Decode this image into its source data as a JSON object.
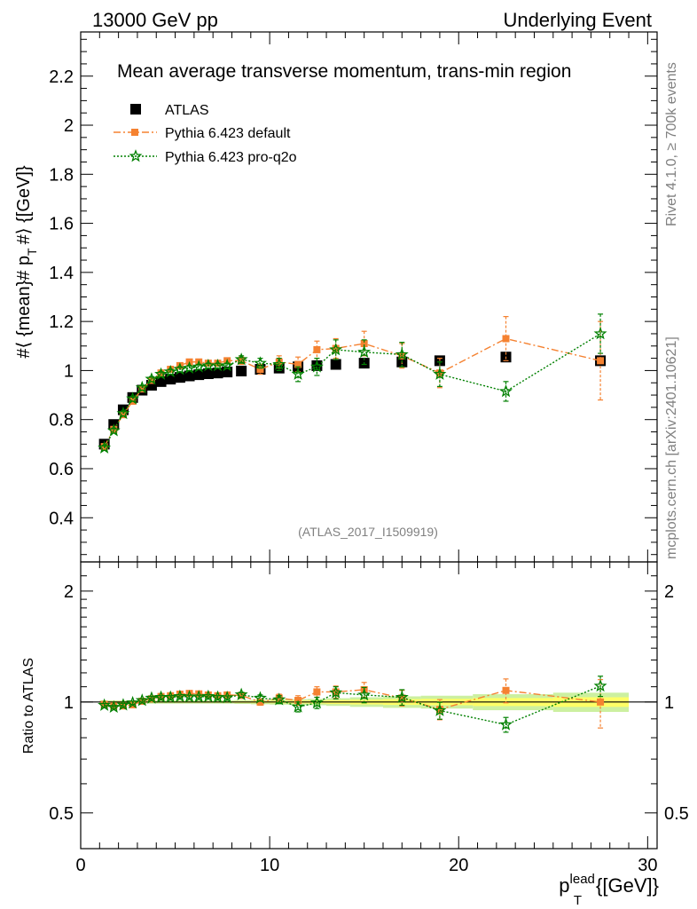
{
  "header": {
    "left": "13000 GeV pp",
    "right": "Underlying Event"
  },
  "side_text": {
    "rivet": "Rivet 4.1.0, ≥ 700k events",
    "mcplots": "mcplots.cern.ch [arXiv:2401.10621]"
  },
  "colors": {
    "data": "#000000",
    "default": "#f58231",
    "proq2o": "#008000",
    "band_inner": "#ffff66",
    "band_outer": "#ccf0a0"
  },
  "chart_data": [
    {
      "type": "scatter",
      "title": "Mean average transverse momentum, trans-min region",
      "ylabel": "#⟨ {mean}# p_T #⟩ {[GeV]}",
      "ylabel_main": "#⟨ {mean}# p",
      "ylabel_sub": "T",
      "ylabel_tail": "#⟩ {[GeV]}",
      "analysis_id": "(ATLAS_2017_I1509919)",
      "xlim": [
        0,
        30.5
      ],
      "ylim": [
        0.22,
        2.38
      ],
      "yticks": [
        0.4,
        0.6,
        0.8,
        1,
        1.2,
        1.4,
        1.6,
        1.8,
        2,
        2.2
      ],
      "ytick_labels": [
        "0.4",
        "0.6",
        "0.8",
        "1",
        "1.2",
        "1.4",
        "1.6",
        "1.8",
        "2",
        "2.2"
      ],
      "legend": [
        "ATLAS",
        "Pythia 6.423 default",
        "Pythia 6.423 pro-q2o"
      ],
      "x": [
        1.25,
        1.75,
        2.25,
        2.75,
        3.25,
        3.75,
        4.25,
        4.75,
        5.25,
        5.75,
        6.25,
        6.75,
        7.25,
        7.75,
        8.5,
        9.5,
        10.5,
        11.5,
        12.5,
        13.5,
        15,
        17,
        19,
        22.5,
        27.5
      ],
      "series": [
        {
          "name": "ATLAS",
          "values": [
            0.7,
            0.78,
            0.84,
            0.89,
            0.92,
            0.94,
            0.955,
            0.965,
            0.972,
            0.978,
            0.983,
            0.987,
            0.99,
            0.994,
            0.998,
            1.005,
            1.01,
            1.015,
            1.02,
            1.025,
            1.03,
            1.035,
            1.04,
            1.055,
            1.04
          ]
        },
        {
          "name": "Pythia 6.423 default",
          "values": [
            0.69,
            0.76,
            0.82,
            0.875,
            0.925,
            0.96,
            0.99,
            1.005,
            1.02,
            1.035,
            1.035,
            1.03,
            1.03,
            1.04,
            1.04,
            1.005,
            1.035,
            1.025,
            1.085,
            1.09,
            1.11,
            1.06,
            0.99,
            1.13,
            1.04
          ]
        },
        {
          "name": "Pythia 6.423 pro-q2o",
          "values": [
            0.685,
            0.755,
            0.825,
            0.885,
            0.93,
            0.965,
            0.985,
            0.995,
            1.005,
            1.01,
            1.015,
            1.02,
            1.02,
            1.02,
            1.045,
            1.03,
            1.025,
            0.985,
            1.015,
            1.085,
            1.075,
            1.065,
            0.985,
            0.915,
            1.15
          ]
        }
      ],
      "errors": {
        "Pythia 6.423 default": [
          0.01,
          0.01,
          0.01,
          0.01,
          0.01,
          0.01,
          0.01,
          0.01,
          0.01,
          0.01,
          0.01,
          0.01,
          0.01,
          0.01,
          0.015,
          0.02,
          0.025,
          0.03,
          0.035,
          0.04,
          0.05,
          0.05,
          0.06,
          0.09,
          0.16
        ],
        "Pythia 6.423 pro-q2o": [
          0.01,
          0.01,
          0.01,
          0.01,
          0.01,
          0.01,
          0.01,
          0.01,
          0.01,
          0.01,
          0.01,
          0.01,
          0.01,
          0.01,
          0.015,
          0.02,
          0.025,
          0.03,
          0.035,
          0.04,
          0.05,
          0.05,
          0.05,
          0.04,
          0.08
        ]
      }
    },
    {
      "type": "scatter",
      "ylabel": "Ratio to ATLAS",
      "xlabel": "p_T^lead {[GeV]}",
      "xlabel_main": "p",
      "xlabel_sub": "T",
      "xlabel_sup": "lead",
      "xlabel_tail": "{[GeV]}",
      "xlim": [
        0,
        30.5
      ],
      "ylim": [
        0.4,
        2.4
      ],
      "yscale": "log",
      "yticks": [
        0.5,
        1,
        2
      ],
      "ytick_labels": [
        "0.5",
        "1",
        "2"
      ],
      "xticks": [
        0,
        10,
        20,
        30
      ],
      "xtick_labels": [
        "0",
        "10",
        "20",
        "30"
      ],
      "x": [
        1.25,
        1.75,
        2.25,
        2.75,
        3.25,
        3.75,
        4.25,
        4.75,
        5.25,
        5.75,
        6.25,
        6.75,
        7.25,
        7.75,
        8.5,
        9.5,
        10.5,
        11.5,
        12.5,
        13.5,
        15,
        17,
        19,
        22.5,
        27.5
      ],
      "series": [
        {
          "name": "Pythia 6.423 default",
          "values": [
            0.985,
            0.975,
            0.976,
            0.983,
            1.005,
            1.02,
            1.035,
            1.04,
            1.05,
            1.055,
            1.052,
            1.045,
            1.04,
            1.045,
            1.042,
            1.0,
            1.025,
            1.01,
            1.065,
            1.065,
            1.08,
            1.025,
            0.955,
            1.075,
            1.0
          ]
        },
        {
          "name": "Pythia 6.423 pro-q2o",
          "values": [
            0.98,
            0.968,
            0.982,
            0.995,
            1.01,
            1.025,
            1.03,
            1.03,
            1.035,
            1.033,
            1.033,
            1.035,
            1.03,
            1.028,
            1.047,
            1.025,
            1.015,
            0.97,
            0.995,
            1.06,
            1.045,
            1.03,
            0.948,
            0.868,
            1.105
          ]
        }
      ],
      "errors": {
        "Pythia 6.423 default": [
          0.01,
          0.01,
          0.01,
          0.01,
          0.01,
          0.01,
          0.01,
          0.01,
          0.01,
          0.01,
          0.01,
          0.01,
          0.01,
          0.01,
          0.015,
          0.02,
          0.025,
          0.03,
          0.035,
          0.04,
          0.05,
          0.05,
          0.06,
          0.08,
          0.15
        ],
        "Pythia 6.423 pro-q2o": [
          0.01,
          0.01,
          0.01,
          0.01,
          0.01,
          0.01,
          0.01,
          0.01,
          0.01,
          0.01,
          0.01,
          0.01,
          0.01,
          0.01,
          0.015,
          0.02,
          0.025,
          0.03,
          0.035,
          0.04,
          0.05,
          0.05,
          0.05,
          0.04,
          0.07
        ]
      },
      "band_half_width": [
        0.005,
        0.005,
        0.005,
        0.005,
        0.005,
        0.005,
        0.005,
        0.005,
        0.005,
        0.005,
        0.005,
        0.005,
        0.005,
        0.005,
        0.006,
        0.007,
        0.008,
        0.009,
        0.01,
        0.012,
        0.015,
        0.018,
        0.02,
        0.025,
        0.03
      ]
    }
  ]
}
